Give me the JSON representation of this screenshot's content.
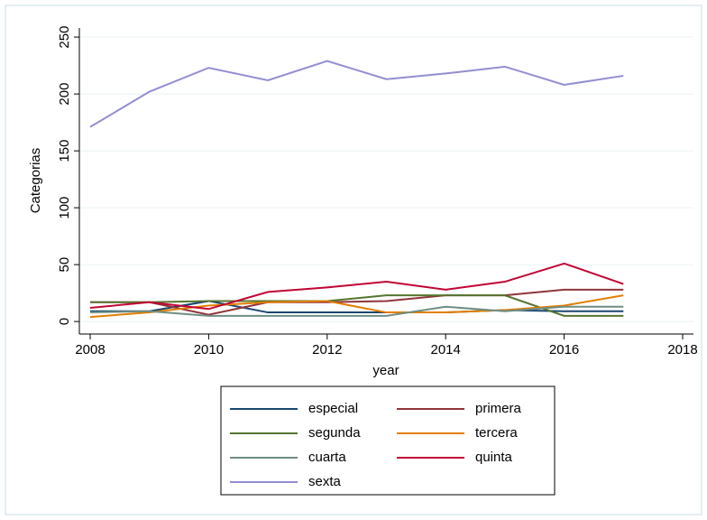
{
  "chart_data": {
    "type": "line",
    "x": [
      2008,
      2009,
      2010,
      2011,
      2012,
      2013,
      2014,
      2015,
      2016,
      2017
    ],
    "xlabel": "year",
    "ylabel": "Categorias",
    "xlim": [
      2008,
      2018
    ],
    "xticks": [
      2008,
      2010,
      2012,
      2014,
      2016,
      2018
    ],
    "ylim": [
      -11,
      258
    ],
    "yticks": [
      0,
      50,
      100,
      150,
      200,
      250
    ],
    "grid": true,
    "legend": "bottom",
    "series": [
      {
        "name": "especial",
        "color": "#1a476f",
        "values": [
          9,
          9,
          18,
          8,
          8,
          8,
          8,
          10,
          9,
          9
        ]
      },
      {
        "name": "primera",
        "color": "#90353b",
        "values": [
          17,
          17,
          6,
          17,
          17,
          18,
          23,
          23,
          28,
          28
        ]
      },
      {
        "name": "segunda",
        "color": "#55752f",
        "values": [
          17,
          17,
          18,
          18,
          18,
          23,
          23,
          23,
          5,
          5
        ]
      },
      {
        "name": "tercera",
        "color": "#e37e00",
        "values": [
          4,
          8,
          14,
          17,
          18,
          8,
          8,
          10,
          14,
          23
        ]
      },
      {
        "name": "cuarta",
        "color": "#6e8e84",
        "values": [
          8,
          9,
          5,
          5,
          5,
          5,
          13,
          9,
          13,
          13
        ]
      },
      {
        "name": "quinta",
        "color": "#c10534",
        "values": [
          12,
          17,
          11,
          26,
          30,
          35,
          28,
          35,
          51,
          33
        ]
      },
      {
        "name": "sexta",
        "color": "#938dd2",
        "values": [
          171,
          202,
          223,
          212,
          229,
          213,
          218,
          224,
          208,
          216
        ]
      }
    ]
  }
}
